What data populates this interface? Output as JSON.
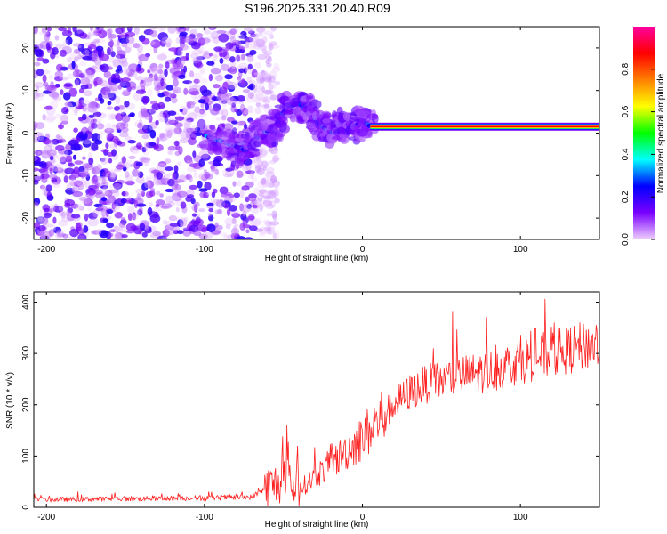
{
  "chart_data": [
    {
      "type": "heatmap",
      "title": "S196.2025.331.20.40.R09",
      "xlabel": "Height of straight line (km)",
      "ylabel": "Frequency (Hz)",
      "xlim": [
        -208,
        150
      ],
      "ylim": [
        -25,
        25
      ],
      "xticks": [
        -200,
        -100,
        0,
        100
      ],
      "yticks": [
        -20,
        -10,
        0,
        10,
        20
      ],
      "colorbar": {
        "label": "Normalized spectral amplitude",
        "range": [
          0,
          1
        ],
        "ticks": [
          "0.0",
          "0.2",
          "0.4",
          "0.6",
          "0.8"
        ],
        "tick_values": [
          0.0,
          0.2,
          0.4,
          0.6,
          0.8
        ],
        "stops": [
          "#f0d0ff",
          "#7a00ff",
          "#0000ff",
          "#00ffff",
          "#00ff00",
          "#ffff00",
          "#ff8000",
          "#ff0000",
          "#ff00a0"
        ]
      },
      "description_regions": {
        "noise_until_km": -68,
        "tone_start_km": 5,
        "tone_frequency_hz": 1.5,
        "wave_points": [
          {
            "x": -100,
            "y": -0.5
          },
          {
            "x": -85,
            "y": -2.5
          },
          {
            "x": -74,
            "y": -4
          },
          {
            "x": -64,
            "y": 0
          },
          {
            "x": -56,
            "y": 1
          },
          {
            "x": -48,
            "y": 6
          },
          {
            "x": -40,
            "y": 7
          },
          {
            "x": -34,
            "y": 5
          },
          {
            "x": -27,
            "y": 2
          },
          {
            "x": -20,
            "y": 0
          },
          {
            "x": -13,
            "y": 2.5
          },
          {
            "x": -7,
            "y": 1
          },
          {
            "x": 0,
            "y": 2.8
          },
          {
            "x": 5,
            "y": 1.6
          }
        ]
      }
    },
    {
      "type": "line",
      "xlabel": "Height of straight line (km)",
      "ylabel": "SNR (10 * v/v)",
      "xlim": [
        -208,
        150
      ],
      "ylim": [
        0,
        420
      ],
      "xticks": [
        -200,
        -100,
        0,
        100
      ],
      "yticks": [
        0,
        100,
        200,
        300,
        400
      ],
      "color": "#ff2020",
      "trend": [
        {
          "x": -208,
          "y": 15
        },
        {
          "x": -100,
          "y": 18
        },
        {
          "x": -70,
          "y": 20
        },
        {
          "x": -60,
          "y": 40
        },
        {
          "x": -50,
          "y": 50
        },
        {
          "x": -40,
          "y": 35
        },
        {
          "x": -30,
          "y": 60
        },
        {
          "x": -20,
          "y": 85
        },
        {
          "x": -10,
          "y": 110
        },
        {
          "x": 0,
          "y": 135
        },
        {
          "x": 10,
          "y": 170
        },
        {
          "x": 20,
          "y": 200
        },
        {
          "x": 30,
          "y": 225
        },
        {
          "x": 40,
          "y": 240
        },
        {
          "x": 60,
          "y": 255
        },
        {
          "x": 80,
          "y": 265
        },
        {
          "x": 100,
          "y": 285
        },
        {
          "x": 120,
          "y": 300
        },
        {
          "x": 150,
          "y": 320
        }
      ],
      "spikes_note": "noisy trace with spikes up to ~165 near -50 km and ~400 near 130 km"
    }
  ]
}
